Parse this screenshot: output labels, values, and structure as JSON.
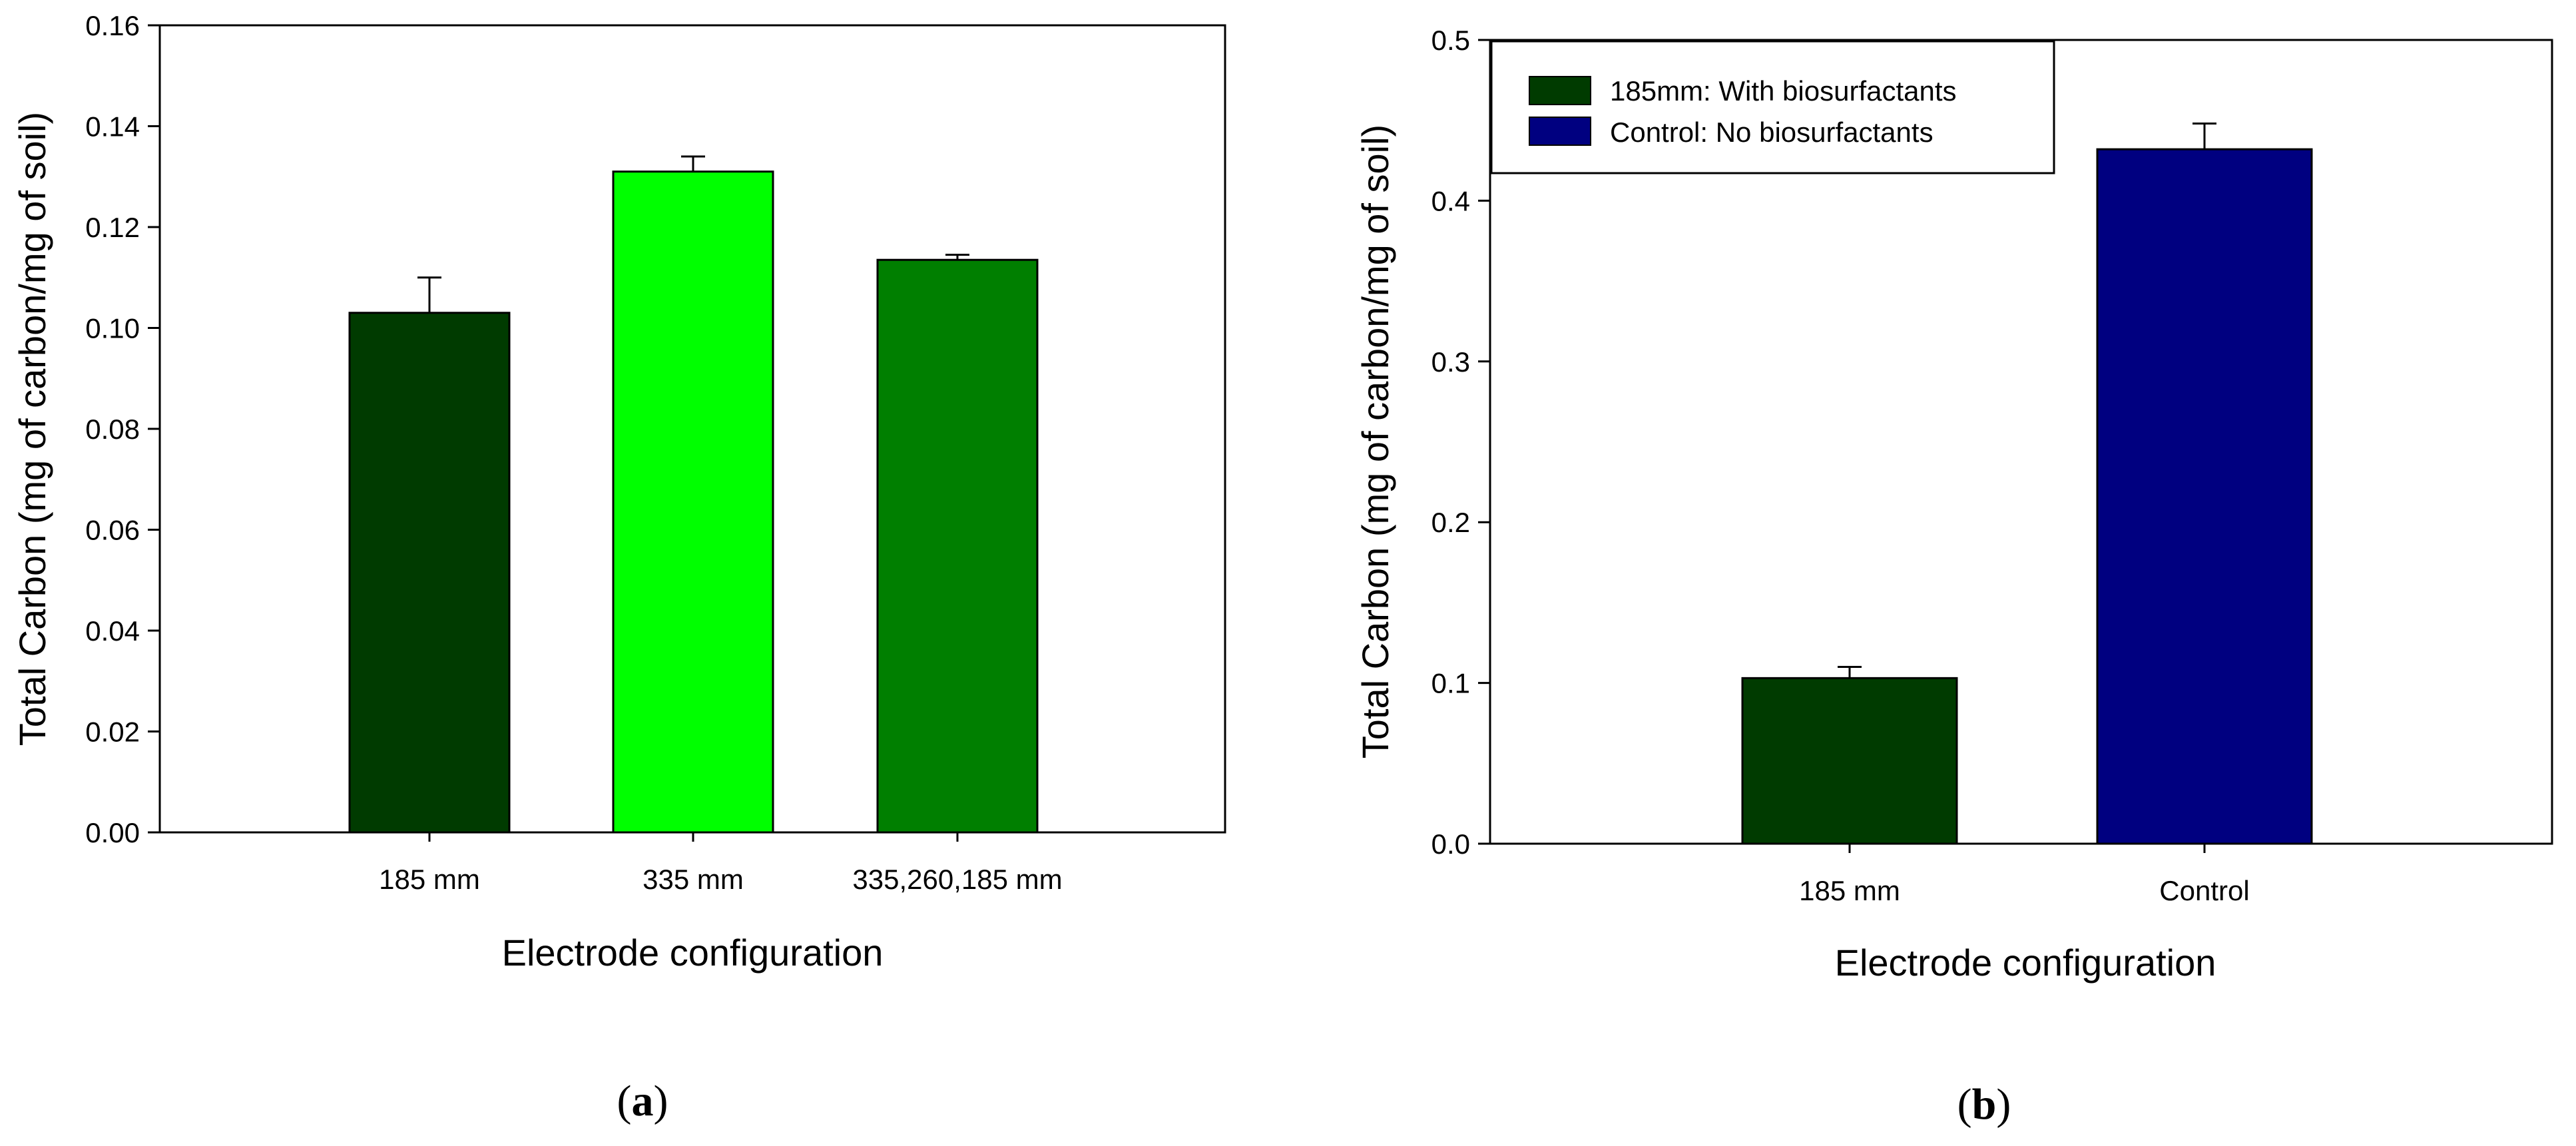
{
  "chart_data": [
    {
      "type": "bar",
      "categories": [
        "185 mm",
        "335 mm",
        "335,260,185 mm"
      ],
      "values": [
        0.103,
        0.131,
        0.1135
      ],
      "errors": [
        0.007,
        0.003,
        0.001
      ],
      "colors": [
        "#003b00",
        "#00ff00",
        "#007f00"
      ],
      "xlabel": "Electrode configuration",
      "ylabel": "Total Carbon (mg of carbon/mg of soil)",
      "ylim": [
        0,
        0.16
      ],
      "yticks": [
        "0.00",
        "0.02",
        "0.04",
        "0.06",
        "0.08",
        "0.10",
        "0.12",
        "0.14",
        "0.16"
      ],
      "grid": false,
      "panel_label": "a"
    },
    {
      "type": "bar",
      "categories": [
        "185 mm",
        "Control"
      ],
      "values": [
        0.103,
        0.432
      ],
      "errors": [
        0.007,
        0.016
      ],
      "colors": [
        "#003b00",
        "#000080"
      ],
      "xlabel": "Electrode configuration",
      "ylabel": "Total Carbon (mg of carbon/mg of soil)",
      "ylim": [
        0,
        0.5
      ],
      "yticks": [
        "0.0",
        "0.1",
        "0.2",
        "0.3",
        "0.4",
        "0.5"
      ],
      "grid": false,
      "legend": {
        "placement": "top-left",
        "entries": [
          {
            "label": "185mm: With biosurfactants",
            "color": "#003b00"
          },
          {
            "label": "Control: No biosurfactants",
            "color": "#000080"
          }
        ]
      },
      "panel_label": "b"
    }
  ]
}
